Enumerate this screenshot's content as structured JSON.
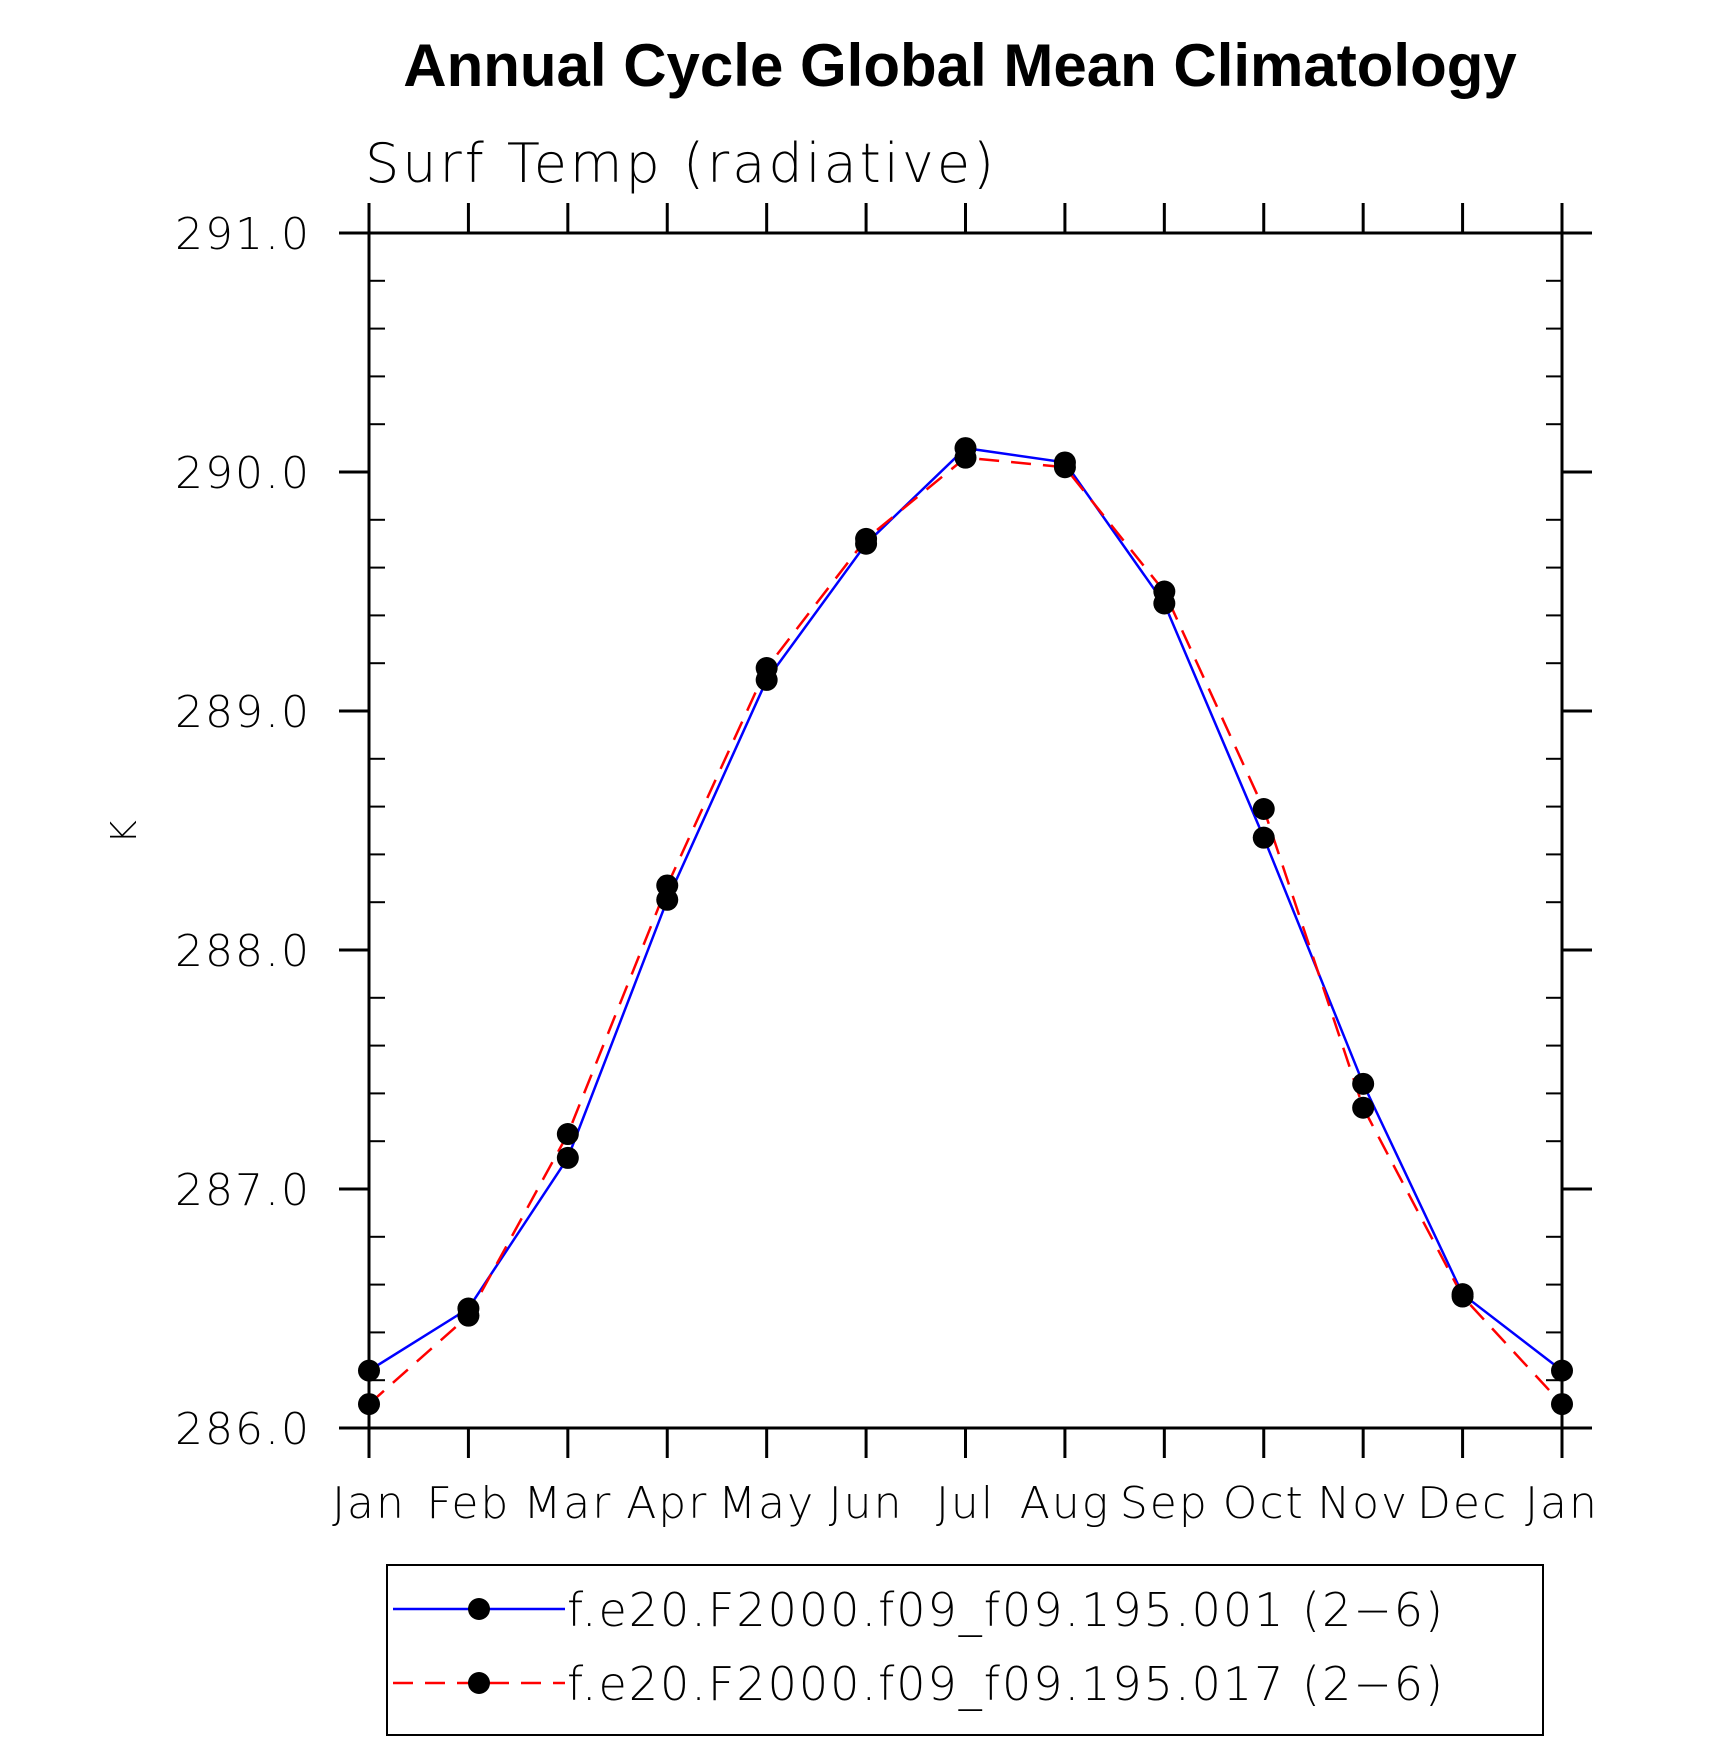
{
  "chart_data": {
    "type": "line",
    "title": "Annual Cycle Global Mean Climatology",
    "subtitle": "Surf Temp (radiative)",
    "xlabel": "",
    "ylabel": "K",
    "categories": [
      "Jan",
      "Feb",
      "Mar",
      "Apr",
      "May",
      "Jun",
      "Jul",
      "Aug",
      "Sep",
      "Oct",
      "Nov",
      "Dec",
      "Jan"
    ],
    "ylim": [
      286.0,
      291.0
    ],
    "yticks": [
      "286.0",
      "287.0",
      "288.0",
      "289.0",
      "290.0",
      "291.0"
    ],
    "grid": false,
    "legend_position": "bottom",
    "series": [
      {
        "name": "f.e20.F2000.f09_f09.195.001 (2−6)",
        "color": "#0000ff",
        "line_style": "solid",
        "marker": "filled-circle",
        "values": [
          286.24,
          286.5,
          287.13,
          288.21,
          289.13,
          289.7,
          290.1,
          290.04,
          289.45,
          288.47,
          287.44,
          286.56,
          286.24
        ]
      },
      {
        "name": "f.e20.F2000.f09_f09.195.017 (2−6)",
        "color": "#ff0000",
        "line_style": "dashed",
        "marker": "filled-circle",
        "values": [
          286.1,
          286.47,
          287.23,
          288.27,
          289.18,
          289.72,
          290.06,
          290.02,
          289.5,
          288.59,
          287.34,
          286.55,
          286.1
        ]
      }
    ]
  }
}
